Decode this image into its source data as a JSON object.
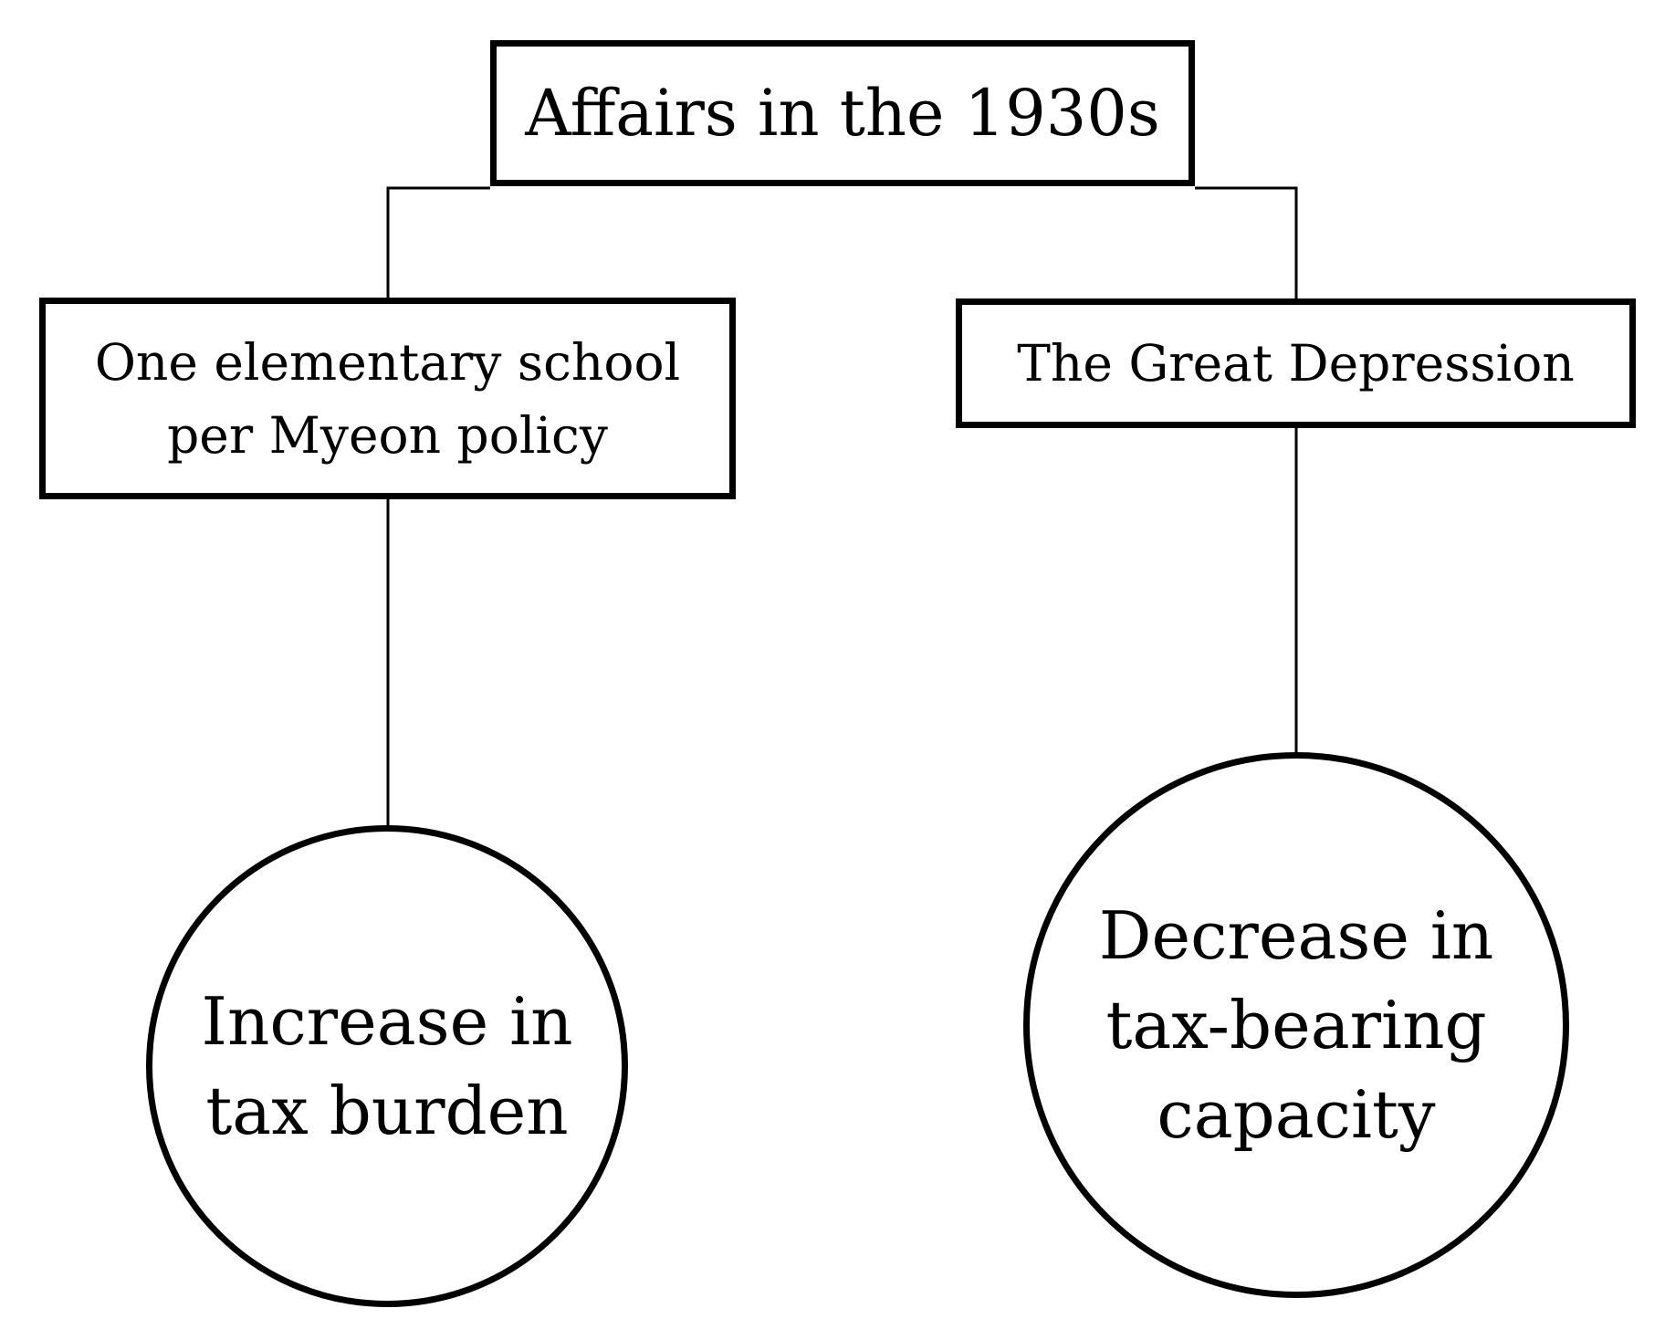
{
  "diagram": {
    "root": {
      "label": "Affairs in the 1930s"
    },
    "causes": [
      {
        "lines": [
          "One elementary school",
          "per Myeon policy"
        ]
      },
      {
        "lines": [
          "The Great Depression"
        ]
      }
    ],
    "effects": [
      {
        "lines": [
          "Increase in",
          "tax burden"
        ]
      },
      {
        "lines": [
          "Decrease in",
          "tax-bearing",
          "capacity"
        ]
      }
    ]
  },
  "colors": {
    "stroke": "#000000",
    "background": "#ffffff"
  }
}
